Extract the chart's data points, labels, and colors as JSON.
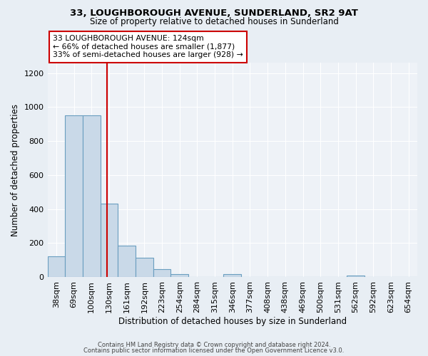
{
  "title1": "33, LOUGHBOROUGH AVENUE, SUNDERLAND, SR2 9AT",
  "title2": "Size of property relative to detached houses in Sunderland",
  "xlabel": "Distribution of detached houses by size in Sunderland",
  "ylabel": "Number of detached properties",
  "bin_labels": [
    "38sqm",
    "69sqm",
    "100sqm",
    "130sqm",
    "161sqm",
    "192sqm",
    "223sqm",
    "254sqm",
    "284sqm",
    "315sqm",
    "346sqm",
    "377sqm",
    "408sqm",
    "438sqm",
    "469sqm",
    "500sqm",
    "531sqm",
    "562sqm",
    "592sqm",
    "623sqm",
    "654sqm"
  ],
  "bar_values": [
    120,
    950,
    950,
    430,
    185,
    112,
    47,
    18,
    0,
    0,
    18,
    0,
    0,
    0,
    0,
    0,
    0,
    8,
    0,
    0,
    0
  ],
  "bar_color": "#c9d9e8",
  "bar_edge_color": "#6a9ec0",
  "property_line_x": 2.87,
  "property_line_color": "#cc0000",
  "annotation_line1": "33 LOUGHBOROUGH AVENUE: 124sqm",
  "annotation_line2": "← 66% of detached houses are smaller (1,877)",
  "annotation_line3": "33% of semi-detached houses are larger (928) →",
  "annotation_box_color": "#ffffff",
  "annotation_box_edge_color": "#cc0000",
  "ylim": [
    0,
    1260
  ],
  "yticks": [
    0,
    200,
    400,
    600,
    800,
    1000,
    1200
  ],
  "footer1": "Contains HM Land Registry data © Crown copyright and database right 2024.",
  "footer2": "Contains public sector information licensed under the Open Government Licence v3.0.",
  "background_color": "#e8eef4",
  "plot_background_color": "#eef2f7"
}
